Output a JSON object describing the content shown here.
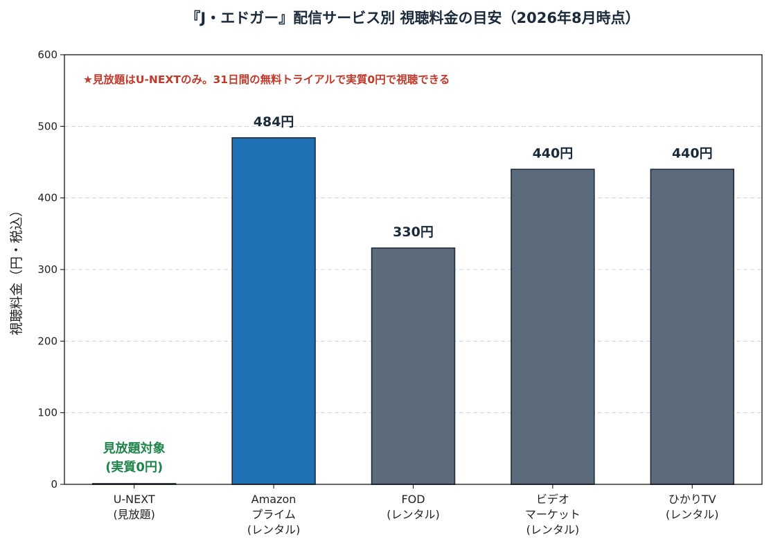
{
  "chart_data": {
    "type": "bar",
    "title": "『J・エドガー』配信サービス別 視聴料金の目安（2026年8月時点）",
    "ylabel": "視聴料金（円・税込）",
    "xlabel": "",
    "ylim": [
      0,
      600
    ],
    "yticks": [
      "0",
      "100",
      "200",
      "300",
      "400",
      "500",
      "600"
    ],
    "grid": "horizontal-dashed",
    "note": "★見放題はU-NEXTのみ。31日間の無料トライアルで実質0円で視聴できる",
    "categories": [
      [
        "U-NEXT",
        "(見放題)"
      ],
      [
        "Amazon",
        "プライム",
        "(レンタル)"
      ],
      [
        "FOD",
        "(レンタル)"
      ],
      [
        "ビデオ",
        "マーケット",
        "(レンタル)"
      ],
      [
        "ひかりTV",
        "(レンタル)"
      ]
    ],
    "values": [
      0,
      484,
      330,
      440,
      440
    ],
    "data_labels": [
      [
        "見放題対象",
        "(実質0円)"
      ],
      [
        "484円"
      ],
      [
        "330円"
      ],
      [
        "440円"
      ],
      [
        "440円"
      ]
    ],
    "colors": {
      "highlight": "#2070b4",
      "default": "#5c6b7c",
      "edge": "#1f2b38",
      "note": "#c0392b",
      "free": "#1e8449",
      "label": "#1b2a3a"
    },
    "bar_colors": [
      "#5c6b7c",
      "#2070b4",
      "#5c6b7c",
      "#5c6b7c",
      "#5c6b7c"
    ]
  }
}
